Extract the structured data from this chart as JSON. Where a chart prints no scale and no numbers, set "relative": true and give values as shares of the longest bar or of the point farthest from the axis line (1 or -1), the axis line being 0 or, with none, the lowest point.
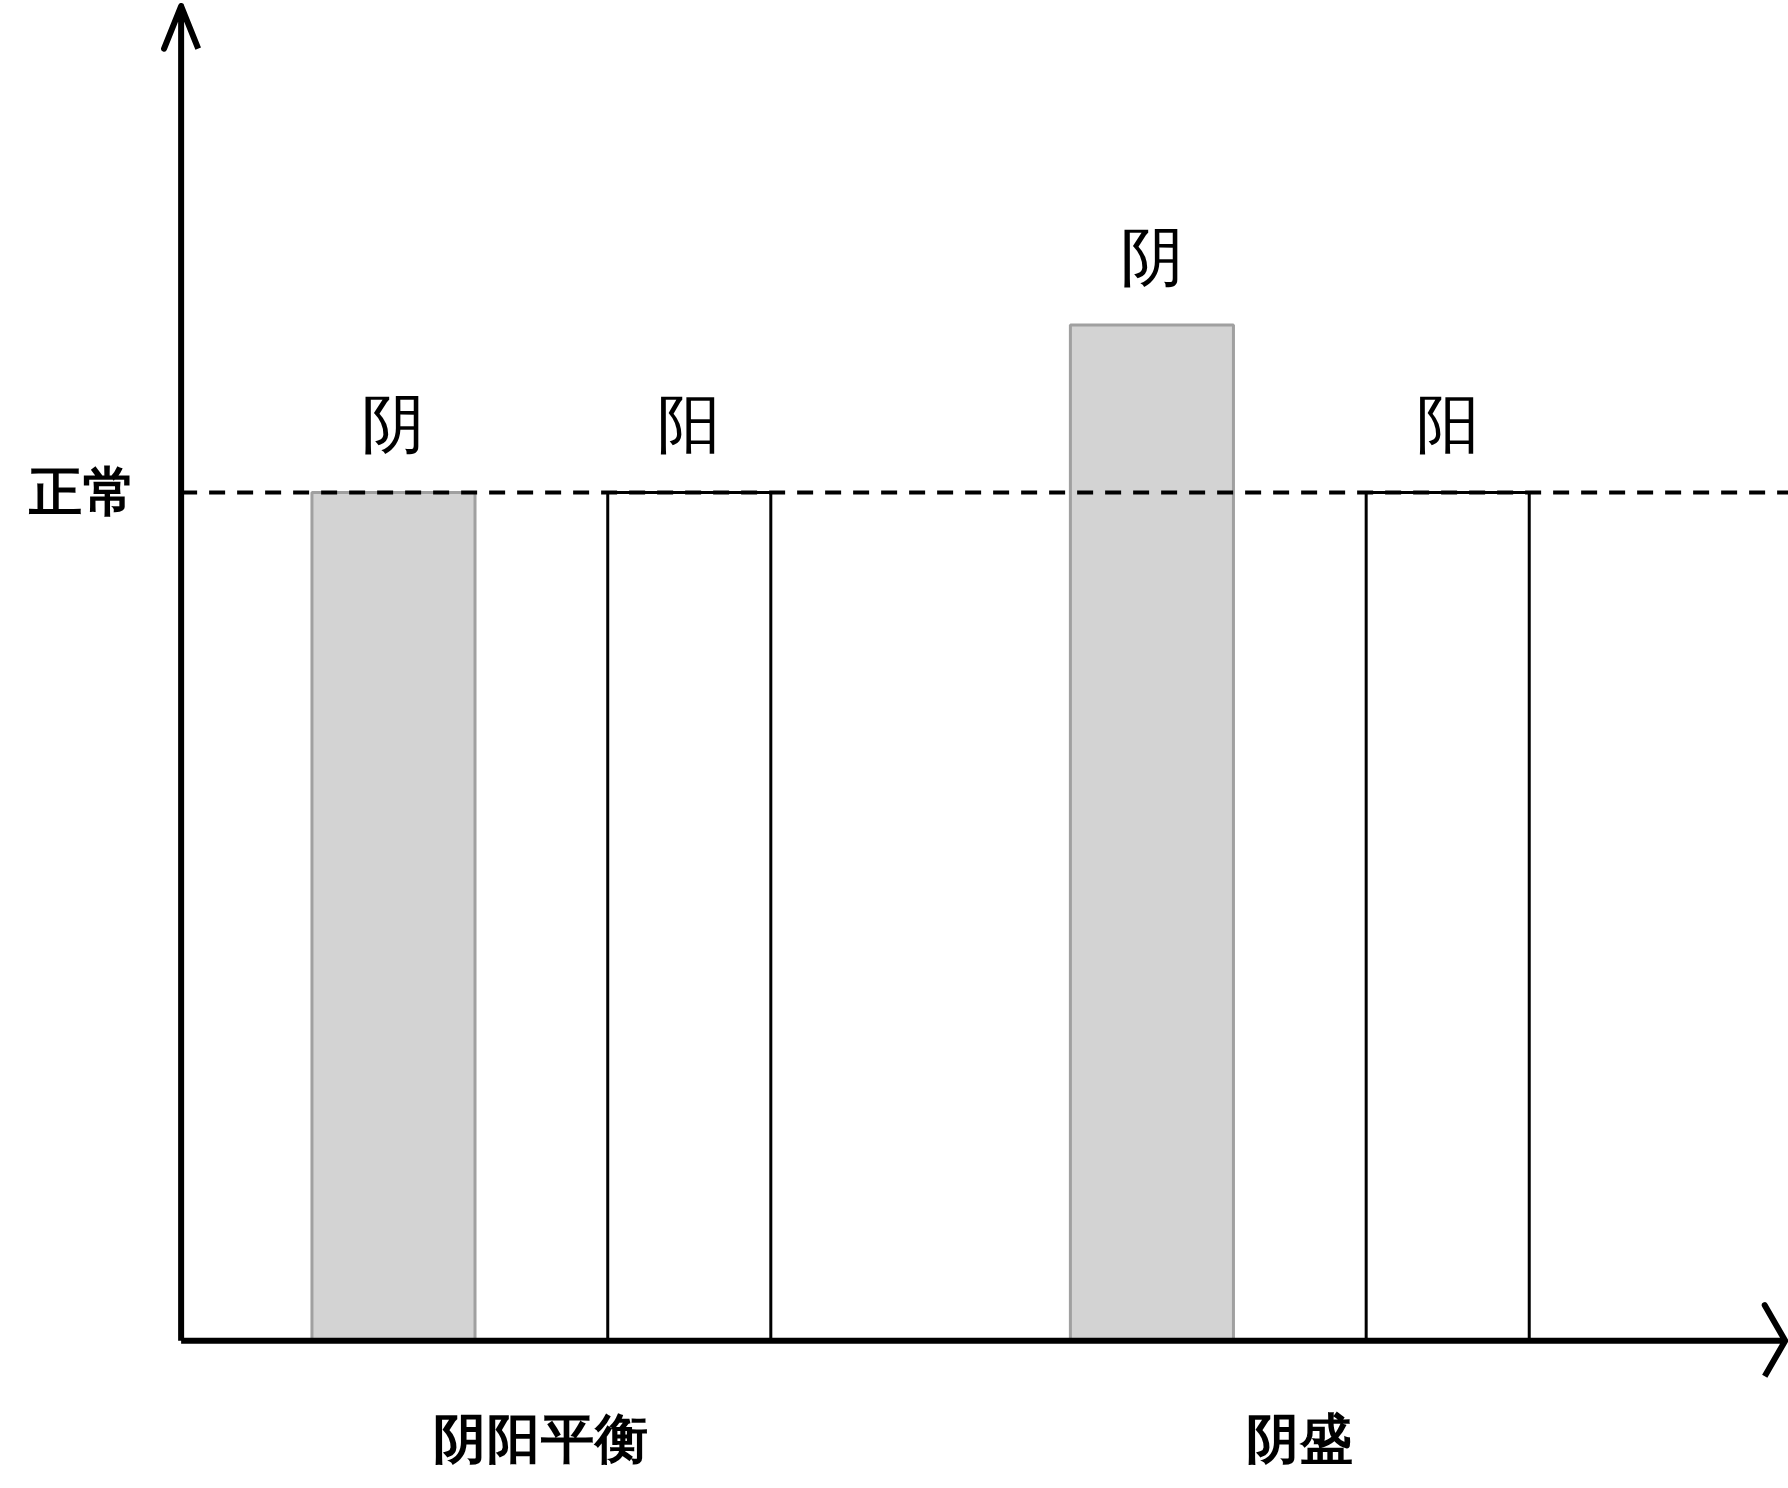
{
  "chart_data": {
    "type": "bar",
    "relative": true,
    "categories": [
      "阴阳平衡",
      "阴盛"
    ],
    "series": [
      {
        "name": "阴",
        "color": "#d3d3d3",
        "values": [
          0.835,
          1
        ]
      },
      {
        "name": "阳",
        "color": "#ffffff",
        "values": [
          0.835,
          0.835
        ]
      }
    ],
    "ref_lines": [
      {
        "axis": "y",
        "value": 0.835,
        "label": "正常",
        "line_style": "dashed",
        "color": "#000000"
      }
    ],
    "grid": false
  }
}
